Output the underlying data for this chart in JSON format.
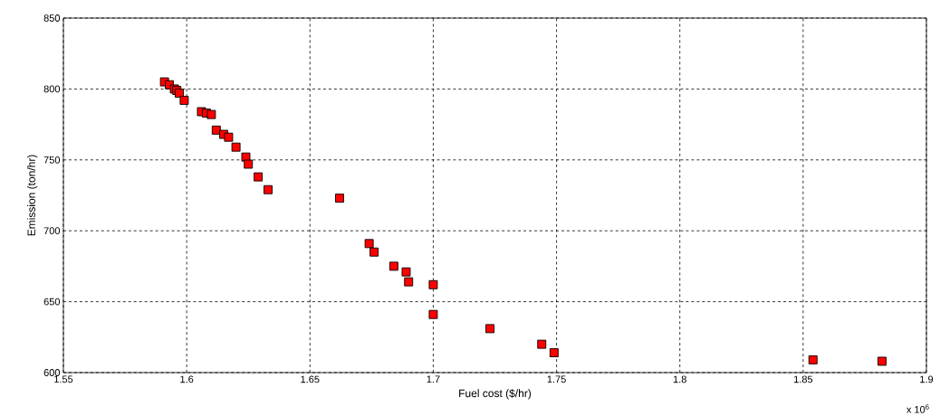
{
  "chart_data": {
    "type": "scatter",
    "xlabel": "Fuel cost ($/hr)",
    "ylabel": "Emission (ton/hr)",
    "annotations": [
      "x 10$^{6}$"
    ],
    "x": [
      1.591,
      1.593,
      1.594,
      1.595,
      1.596,
      1.597,
      1.599,
      1.606,
      1.608,
      1.61,
      1.612,
      1.615,
      1.617,
      1.62,
      1.624,
      1.625,
      1.629,
      1.633,
      1.662,
      1.674,
      1.676,
      1.684,
      1.689,
      1.69,
      1.7,
      1.7,
      1.723,
      1.744,
      1.749,
      1.854,
      1.882
    ],
    "values": [
      805,
      803,
      null,
      800,
      799,
      797,
      792,
      784,
      783,
      782,
      771,
      768,
      766,
      759,
      752,
      747,
      738,
      729,
      723,
      691,
      685,
      675,
      671,
      664,
      662,
      641,
      631,
      620,
      614,
      609,
      608
    ],
    "color": "#ff0000",
    "marker": "square",
    "grid": true,
    "xlim": [
      1.55,
      1.9
    ],
    "ylim": [
      600,
      850
    ],
    "xticks": [
      1.55,
      1.6,
      1.65,
      1.7,
      1.75,
      1.8,
      1.85,
      1.9
    ],
    "yticks": [
      600,
      650,
      700,
      750,
      800,
      850
    ]
  }
}
